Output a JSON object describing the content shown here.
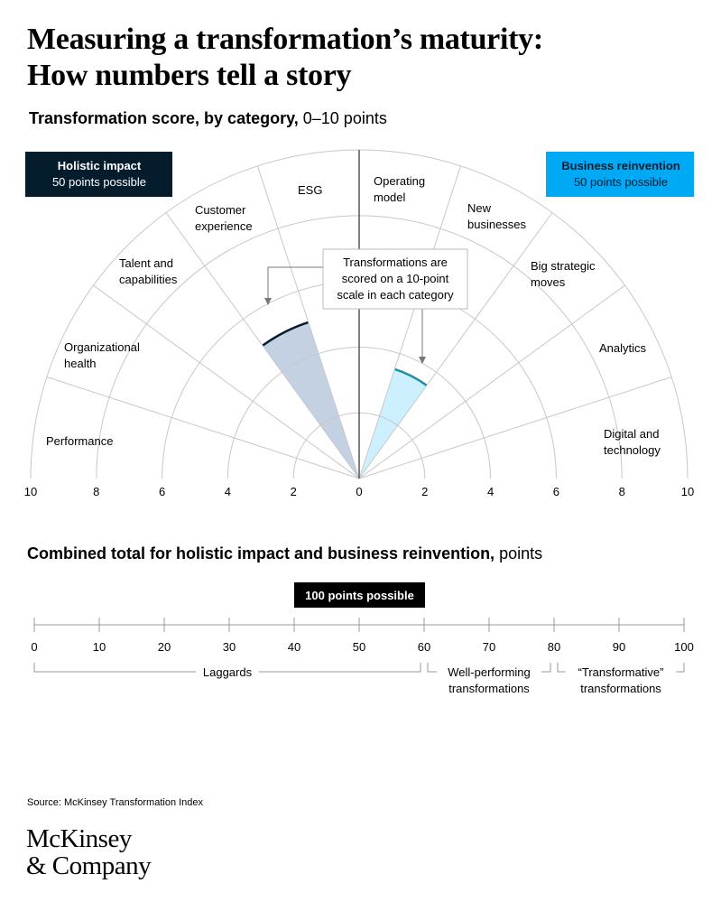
{
  "title": {
    "line1": "Measuring a transformation’s maturity:",
    "line2": "How numbers tell a story"
  },
  "chart_data": [
    {
      "type": "radial",
      "title_bold": "Transformation score, by category,",
      "title_unit": " 0–10 points",
      "range": [
        0,
        10
      ],
      "tick_labels": [
        "10",
        "8",
        "6",
        "4",
        "2",
        "0",
        "2",
        "4",
        "6",
        "8",
        "10"
      ],
      "ring_values": [
        2,
        4,
        6,
        8,
        10
      ],
      "left_group": {
        "label": "Holistic impact",
        "sublabel": "50 points possible",
        "color": "#051c2c",
        "categories": [
          [
            "Performance"
          ],
          [
            "Organizational",
            "health"
          ],
          [
            "Talent and",
            "capabilities"
          ],
          [
            "Customer",
            "experience"
          ],
          [
            "ESG"
          ]
        ]
      },
      "right_group": {
        "label": "Business reinvention",
        "sublabel": "50 points possible",
        "color": "#00a9f4",
        "categories": [
          [
            "Operating",
            "model"
          ],
          [
            "New",
            "businesses"
          ],
          [
            "Big strategic",
            "moves"
          ],
          [
            "Analytics"
          ],
          [
            "Digital and",
            "technology"
          ]
        ]
      },
      "example_scores": [
        {
          "group": "left",
          "category": "Customer experience",
          "value": 5.0,
          "fill": "#c3d1e3",
          "edge": "#051c2c"
        },
        {
          "group": "right",
          "category": "New businesses",
          "value": 3.5,
          "fill": "#ccf0fd",
          "edge": "#1f8fa8"
        }
      ],
      "callout": [
        "Transformations are",
        "scored on a 10-point",
        "scale in each category"
      ]
    },
    {
      "type": "scale",
      "title_bold": "Combined total for holistic impact and business reinvention,",
      "title_unit": " points",
      "badge": "100 points possible",
      "range": [
        0,
        100
      ],
      "ticks": [
        0,
        10,
        20,
        30,
        40,
        50,
        60,
        70,
        80,
        90,
        100
      ],
      "tick_labels": [
        "0",
        "10",
        "20",
        "30",
        "40",
        "50",
        "60",
        "70",
        "80",
        "90",
        "100"
      ],
      "bands": [
        {
          "from": 0,
          "to": 60,
          "label": [
            "Laggards"
          ]
        },
        {
          "from": 60,
          "to": 80,
          "label": [
            "Well-performing",
            "transformations"
          ]
        },
        {
          "from": 80,
          "to": 100,
          "label": [
            "“Transformative”",
            "transformations"
          ]
        }
      ]
    }
  ],
  "source": "Source: McKinsey Transformation Index",
  "logo": {
    "line1": "McKinsey",
    "line2": "& Company"
  }
}
